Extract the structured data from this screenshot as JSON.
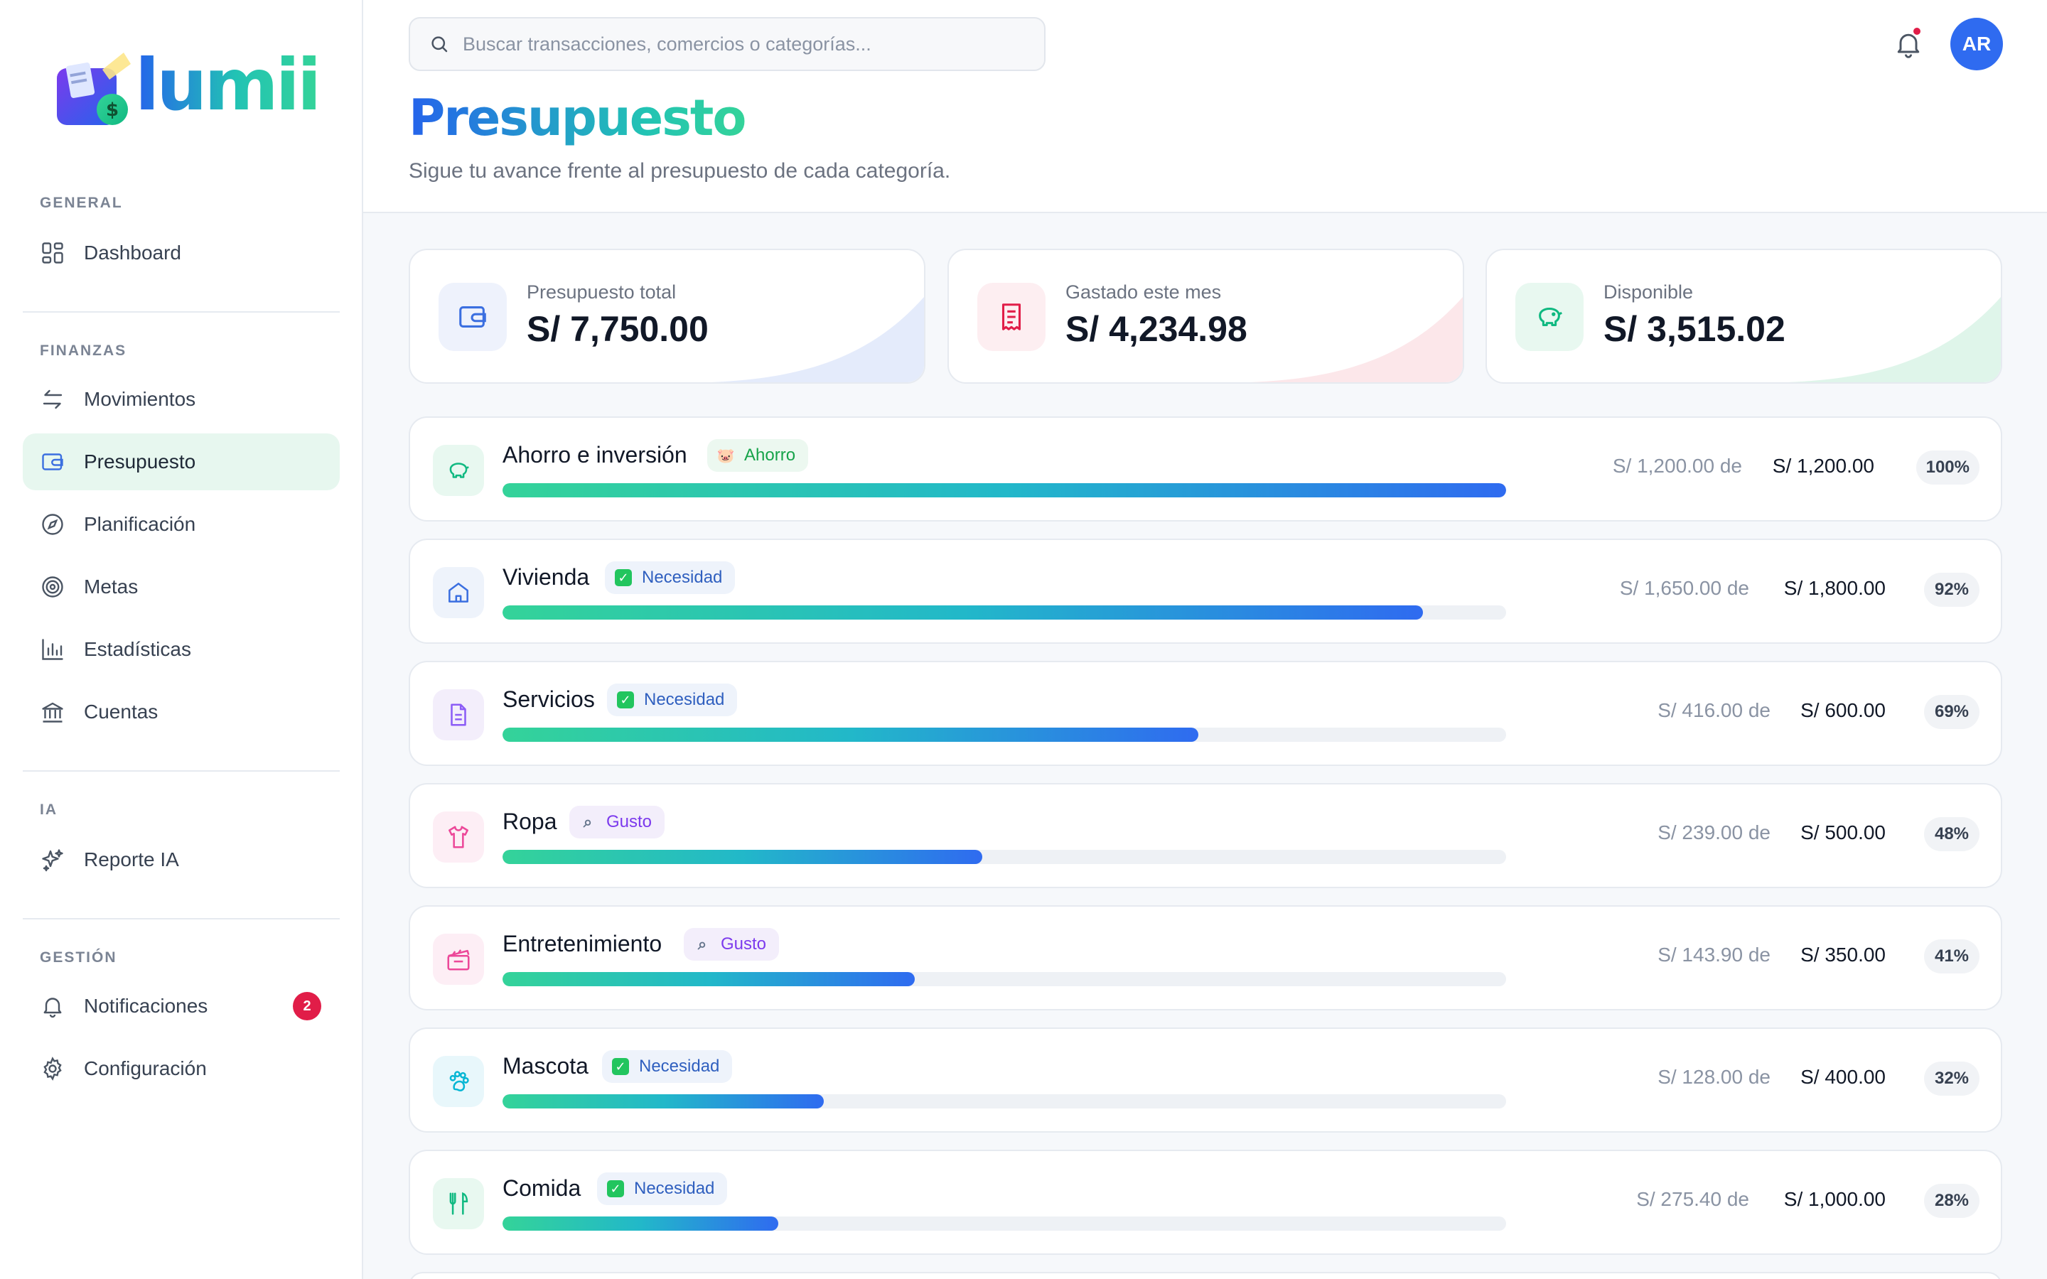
{
  "app": {
    "brand": "lumii"
  },
  "sidebar": {
    "sections": [
      {
        "label": "GENERAL",
        "items": [
          {
            "label": "Dashboard",
            "icon": "dashboard-icon"
          }
        ]
      },
      {
        "label": "FINANZAS",
        "items": [
          {
            "label": "Movimientos",
            "icon": "arrows-icon"
          },
          {
            "label": "Presupuesto",
            "icon": "wallet-icon",
            "active": true
          },
          {
            "label": "Planificación",
            "icon": "compass-icon"
          },
          {
            "label": "Metas",
            "icon": "target-icon"
          },
          {
            "label": "Estadísticas",
            "icon": "bar-chart-icon"
          },
          {
            "label": "Cuentas",
            "icon": "bank-icon"
          }
        ]
      },
      {
        "label": "IA",
        "items": [
          {
            "label": "Reporte IA",
            "icon": "sparkles-icon"
          }
        ]
      },
      {
        "label": "GESTIÓN",
        "items": [
          {
            "label": "Notificaciones",
            "icon": "bell-icon",
            "badge": "2"
          },
          {
            "label": "Configuración",
            "icon": "gear-icon"
          }
        ]
      }
    ]
  },
  "header": {
    "search_placeholder": "Buscar transacciones, comercios o categorías...",
    "avatar_initials": "AR",
    "title": "Presupuesto",
    "subtitle": "Sigue tu avance frente al presupuesto de cada categoría."
  },
  "stats": [
    {
      "label": "Presupuesto total",
      "value": "S/ 7,750.00",
      "icon": "wallet-icon",
      "color": "#3b6fe0"
    },
    {
      "label": "Gastado este mes",
      "value": "S/ 4,234.98",
      "icon": "receipt-icon",
      "color": "#e11d48"
    },
    {
      "label": "Disponible",
      "value": "S/ 3,515.02",
      "icon": "piggy-bank-icon",
      "color": "#10b981"
    }
  ],
  "budgets": [
    {
      "name": "Ahorro e inversión",
      "tag": "Ahorro",
      "tag_type": "ahorro",
      "tag_icon": "pig-emoji",
      "spent": "S/ 1,200.00 de",
      "budget": "S/ 1,200.00",
      "percent": "100%",
      "progress": 1.0,
      "icon": "piggy-bank-icon",
      "icon_color": "#10b981",
      "icon_bg": "#e8f8f0"
    },
    {
      "name": "Vivienda",
      "tag": "Necesidad",
      "tag_type": "necesidad",
      "tag_icon": "check-emoji",
      "spent": "S/ 1,650.00 de",
      "budget": "S/ 1,800.00",
      "percent": "92%",
      "progress": 0.917,
      "icon": "home-icon",
      "icon_color": "#3b6fe0",
      "icon_bg": "#eef3fb"
    },
    {
      "name": "Servicios",
      "tag": "Necesidad",
      "tag_type": "necesidad",
      "tag_icon": "check-emoji",
      "spent": "S/ 416.00 de",
      "budget": "S/ 600.00",
      "percent": "69%",
      "progress": 0.693,
      "icon": "document-icon",
      "icon_color": "#8b5cf6",
      "icon_bg": "#f3eefb"
    },
    {
      "name": "Ropa",
      "tag": "Gusto",
      "tag_type": "gusto",
      "tag_icon": "search-emoji",
      "spent": "S/ 239.00 de",
      "budget": "S/ 500.00",
      "percent": "48%",
      "progress": 0.478,
      "icon": "shirt-icon",
      "icon_color": "#ec4899",
      "icon_bg": "#fdeef5"
    },
    {
      "name": "Entretenimiento",
      "tag": "Gusto",
      "tag_type": "gusto",
      "tag_icon": "search-emoji",
      "spent": "S/ 143.90 de",
      "budget": "S/ 350.00",
      "percent": "41%",
      "progress": 0.411,
      "icon": "clapperboard-icon",
      "icon_color": "#ec4899",
      "icon_bg": "#fdeef5"
    },
    {
      "name": "Mascota",
      "tag": "Necesidad",
      "tag_type": "necesidad",
      "tag_icon": "check-emoji",
      "spent": "S/ 128.00 de",
      "budget": "S/ 400.00",
      "percent": "32%",
      "progress": 0.32,
      "icon": "paw-icon",
      "icon_color": "#06b6d4",
      "icon_bg": "#e8f7fb"
    },
    {
      "name": "Comida",
      "tag": "Necesidad",
      "tag_type": "necesidad",
      "tag_icon": "check-emoji",
      "spent": "S/ 275.40 de",
      "budget": "S/ 1,000.00",
      "percent": "28%",
      "progress": 0.275,
      "icon": "utensils-icon",
      "icon_color": "#10b981",
      "icon_bg": "#e8f8f0"
    }
  ]
}
